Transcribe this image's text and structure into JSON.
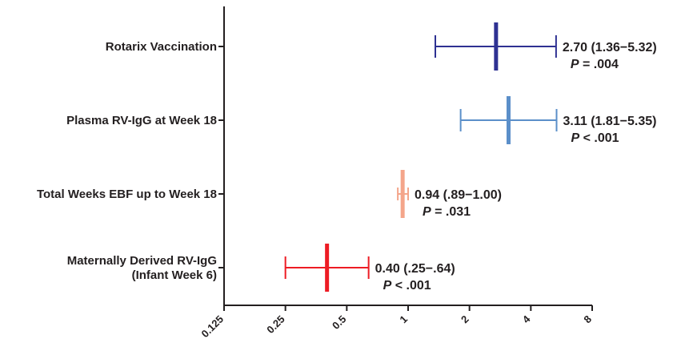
{
  "chart_data": {
    "type": "forest",
    "xscale": "log2",
    "xlim": [
      0.125,
      8
    ],
    "xticks": [
      "0.125",
      "0.25",
      "0.5",
      "1",
      "2",
      "4",
      "8"
    ],
    "tick_values": [
      0.125,
      0.25,
      0.5,
      1,
      2,
      4,
      8
    ],
    "grid": false,
    "series": [
      {
        "label_lines": [
          "Rotarix Vaccination"
        ],
        "point": 2.7,
        "lower": 1.36,
        "upper": 5.32,
        "estimate_text": "2.70 (1.36−5.32)",
        "p_label": "P",
        "p_text": " = .004",
        "color": "#2e3192"
      },
      {
        "label_lines": [
          "Plasma RV-IgG at Week 18"
        ],
        "point": 3.11,
        "lower": 1.81,
        "upper": 5.35,
        "estimate_text": "3.11 (1.81−5.35)",
        "p_label": "P",
        "p_text": " < .001",
        "color": "#5b8fc9"
      },
      {
        "label_lines": [
          "Total Weeks EBF up to Week 18"
        ],
        "point": 0.94,
        "lower": 0.89,
        "upper": 1.0,
        "estimate_text": "0.94 (.89−1.00)",
        "p_label": "P",
        "p_text": " = .031",
        "color": "#f4a58a"
      },
      {
        "label_lines": [
          "Maternally Derived RV-IgG",
          "(Infant Week 6)"
        ],
        "point": 0.4,
        "lower": 0.25,
        "upper": 0.64,
        "estimate_text": "0.40 (.25−.64)",
        "p_label": "P",
        "p_text": " < .001",
        "color": "#ed1c24"
      }
    ]
  }
}
